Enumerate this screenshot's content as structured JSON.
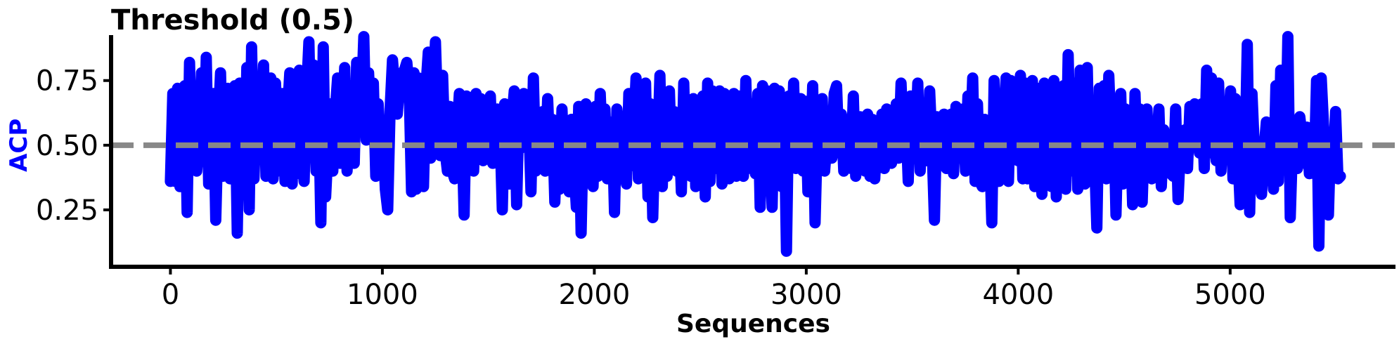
{
  "chart_data": {
    "type": "line",
    "title": "Threshold (0.5)",
    "xlabel": "Sequences",
    "ylabel": "ACP",
    "xlim": [
      -280,
      5780
    ],
    "ylim": [
      0.03,
      0.98
    ],
    "xticks": [
      0,
      1000,
      2000,
      3000,
      4000,
      5000
    ],
    "yticks": [
      0.25,
      0.5,
      0.75
    ],
    "ytick_labels": [
      "0.25",
      "0.50",
      "0.75"
    ],
    "threshold": 0.5,
    "grid": false,
    "n_points": 5521,
    "colors": {
      "series": "#0000ff",
      "threshold": "#888888",
      "ylabel": "#0000ff"
    },
    "series": [
      {
        "values": [
          0.36,
          0.7,
          0.36,
          0.72,
          0.34,
          0.65,
          0.73,
          0.24,
          0.82,
          0.41,
          0.61,
          0.4,
          0.52,
          0.78,
          0.46,
          0.84,
          0.35,
          0.55,
          0.7,
          0.21,
          0.57,
          0.78,
          0.38,
          0.66,
          0.72,
          0.37,
          0.52,
          0.73,
          0.16,
          0.74,
          0.61,
          0.37,
          0.8,
          0.25,
          0.88,
          0.37,
          0.66,
          0.45,
          0.59,
          0.81,
          0.38,
          0.67,
          0.76,
          0.37,
          0.74,
          0.52,
          0.4,
          0.7,
          0.36,
          0.62,
          0.78,
          0.35,
          0.7,
          0.39,
          0.79,
          0.47,
          0.36,
          0.7,
          0.9,
          0.47,
          0.81,
          0.4,
          0.67,
          0.2,
          0.88,
          0.3,
          0.49,
          0.66,
          0.4,
          0.63,
          0.76,
          0.43,
          0.58,
          0.8,
          0.4,
          0.61,
          0.7,
          0.43,
          0.82,
          0.55,
          0.66,
          0.92,
          0.52,
          0.78,
          0.58,
          0.74,
          0.38,
          0.66,
          0.47,
          0.55,
          0.33,
          0.25,
          0.64,
          0.83,
          0.71,
          0.62,
          0.74,
          0.78,
          0.79,
          0.82,
          0.72,
          0.32,
          0.78,
          0.33,
          0.76,
          0.5,
          0.34,
          0.72,
          0.86,
          0.45,
          0.67,
          0.9,
          0.6,
          0.46,
          0.77,
          0.48,
          0.4,
          0.65,
          0.4,
          0.37,
          0.54,
          0.7,
          0.58,
          0.23,
          0.69,
          0.43,
          0.66,
          0.4,
          0.7,
          0.57,
          0.68,
          0.44,
          0.56,
          0.52,
          0.69,
          0.43,
          0.49,
          0.64,
          0.57,
          0.25,
          0.66,
          0.55,
          0.35,
          0.6,
          0.71,
          0.27,
          0.65,
          0.49,
          0.7,
          0.55,
          0.61,
          0.32,
          0.76,
          0.4,
          0.61,
          0.43,
          0.63,
          0.4,
          0.68,
          0.44,
          0.6,
          0.28,
          0.53,
          0.33,
          0.64,
          0.4,
          0.51,
          0.32,
          0.6,
          0.42,
          0.26,
          0.65,
          0.16,
          0.6,
          0.66,
          0.46,
          0.58,
          0.34,
          0.65,
          0.38,
          0.7,
          0.47,
          0.64,
          0.37,
          0.48,
          0.59,
          0.24,
          0.64,
          0.54,
          0.4,
          0.5,
          0.35,
          0.7,
          0.42,
          0.54,
          0.76,
          0.37,
          0.62,
          0.4,
          0.74,
          0.3,
          0.66,
          0.22,
          0.56,
          0.47,
          0.77,
          0.34,
          0.68,
          0.38,
          0.71,
          0.41,
          0.63,
          0.4,
          0.57,
          0.32,
          0.74,
          0.4,
          0.58,
          0.38,
          0.68,
          0.34,
          0.45,
          0.6,
          0.69,
          0.3,
          0.74,
          0.36,
          0.71,
          0.49,
          0.41,
          0.71,
          0.35,
          0.7,
          0.49,
          0.37,
          0.6,
          0.7,
          0.38,
          0.69,
          0.54,
          0.38,
          0.75,
          0.41,
          0.53,
          0.66,
          0.39,
          0.7,
          0.26,
          0.73,
          0.39,
          0.71,
          0.48,
          0.26,
          0.72,
          0.37,
          0.71,
          0.34,
          0.65,
          0.09,
          0.69,
          0.44,
          0.74,
          0.41,
          0.54,
          0.68,
          0.4,
          0.67,
          0.32,
          0.44,
          0.73,
          0.2,
          0.56,
          0.49,
          0.68,
          0.4,
          0.52,
          0.63,
          0.45,
          0.7,
          0.73,
          0.47,
          0.62,
          0.4,
          0.53,
          0.6,
          0.41,
          0.69,
          0.38,
          0.48,
          0.61,
          0.55,
          0.4,
          0.62,
          0.38,
          0.6,
          0.37,
          0.57,
          0.46,
          0.62,
          0.41,
          0.64,
          0.58,
          0.43,
          0.58,
          0.66,
          0.45,
          0.74,
          0.51,
          0.62,
          0.36,
          0.69,
          0.57,
          0.47,
          0.74,
          0.4,
          0.64,
          0.57,
          0.44,
          0.71,
          0.5,
          0.21,
          0.61,
          0.46,
          0.57,
          0.62,
          0.41,
          0.49,
          0.62,
          0.39,
          0.65,
          0.58,
          0.45,
          0.64,
          0.4,
          0.69,
          0.5,
          0.76,
          0.36,
          0.66,
          0.36,
          0.34,
          0.6,
          0.45,
          0.52,
          0.2,
          0.75,
          0.56,
          0.36,
          0.64,
          0.43,
          0.76,
          0.36,
          0.75,
          0.56,
          0.68,
          0.44,
          0.77,
          0.37,
          0.74,
          0.37,
          0.5,
          0.75,
          0.34,
          0.72,
          0.5,
          0.31,
          0.74,
          0.44,
          0.62,
          0.34,
          0.75,
          0.3,
          0.7,
          0.49,
          0.73,
          0.33,
          0.85,
          0.4,
          0.6,
          0.74,
          0.33,
          0.79,
          0.58,
          0.35,
          0.8,
          0.36,
          0.66,
          0.47,
          0.18,
          0.72,
          0.43,
          0.73,
          0.37,
          0.77,
          0.52,
          0.65,
          0.23,
          0.61,
          0.7,
          0.35,
          0.64,
          0.45,
          0.58,
          0.27,
          0.7,
          0.41,
          0.64,
          0.28,
          0.57,
          0.64,
          0.43,
          0.37,
          0.56,
          0.49,
          0.64,
          0.34,
          0.56,
          0.41,
          0.47,
          0.39,
          0.38,
          0.64,
          0.29,
          0.49,
          0.42,
          0.56,
          0.41,
          0.65,
          0.58,
          0.66,
          0.56,
          0.47,
          0.66,
          0.41,
          0.79,
          0.47,
          0.76,
          0.54,
          0.44,
          0.74,
          0.4,
          0.58,
          0.49,
          0.55,
          0.71,
          0.37,
          0.68,
          0.48,
          0.27,
          0.59,
          0.44,
          0.89,
          0.24,
          0.7,
          0.48,
          0.47,
          0.35,
          0.31,
          0.48,
          0.59,
          0.4,
          0.49,
          0.33,
          0.73,
          0.36,
          0.79,
          0.44,
          0.43,
          0.92,
          0.22,
          0.52,
          0.5,
          0.41,
          0.61,
          0.53,
          0.43,
          0.57,
          0.39,
          0.46,
          0.39,
          0.75,
          0.11,
          0.76,
          0.57,
          0.42,
          0.23,
          0.55,
          0.42,
          0.63,
          0.37,
          0.38
        ]
      }
    ]
  }
}
